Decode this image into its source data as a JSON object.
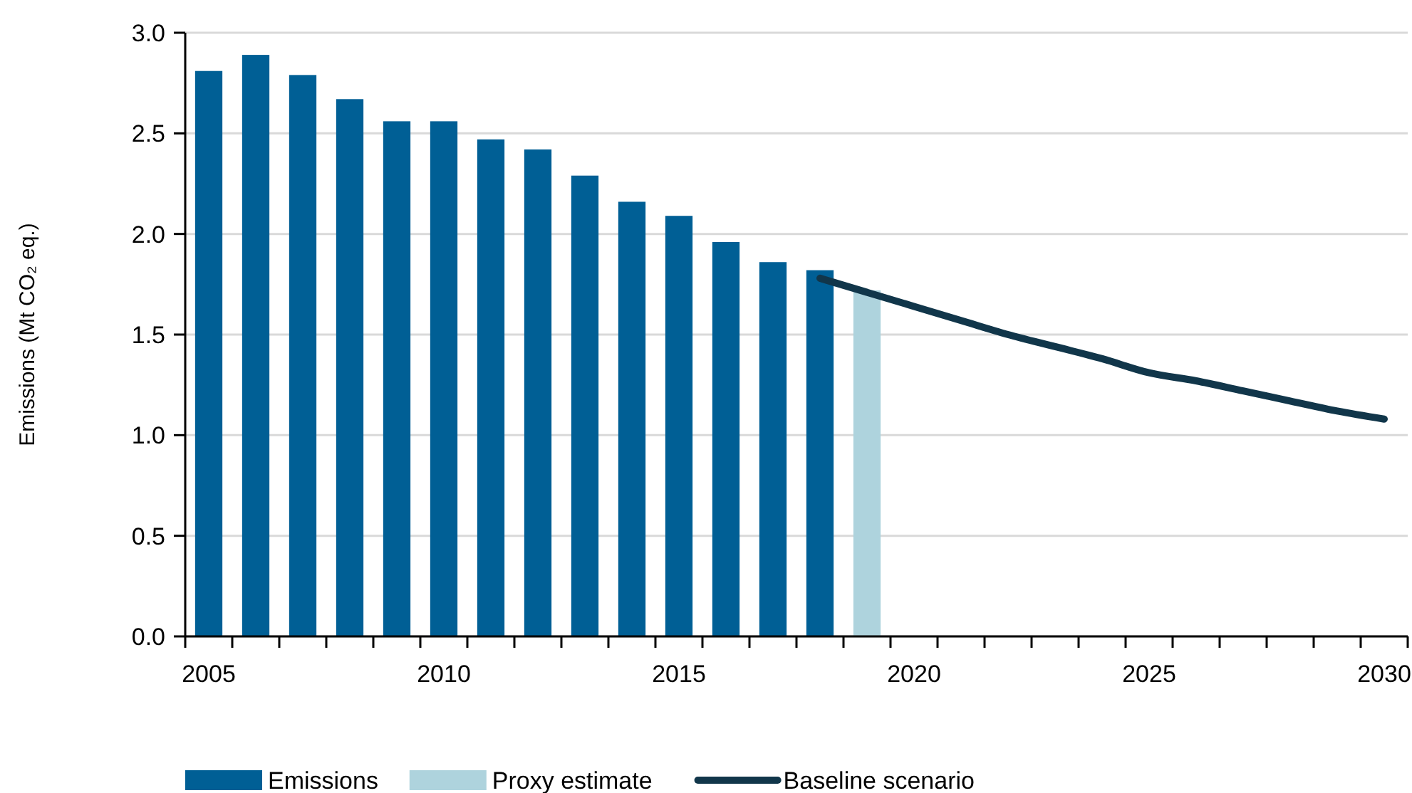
{
  "chart_data": {
    "type": "bar",
    "ylabel": "Emissions (Mt CO₂ eq.)",
    "categories": [
      "2005",
      null,
      null,
      null,
      null,
      "2010",
      null,
      null,
      null,
      null,
      "2015",
      null,
      null,
      null,
      null,
      "2020",
      null,
      null,
      null,
      null,
      "2025",
      null,
      null,
      null,
      null,
      "2030"
    ],
    "series": [
      {
        "name": "Emissions",
        "color": "#005f95",
        "values": [
          2.81,
          2.89,
          2.79,
          2.67,
          2.56,
          2.56,
          2.47,
          2.42,
          2.29,
          2.16,
          2.09,
          1.96,
          1.86,
          1.82,
          null,
          null,
          null,
          null,
          null,
          null,
          null,
          null,
          null,
          null,
          null,
          null
        ]
      },
      {
        "name": "Proxy estimate",
        "color": "#aed3dd",
        "values": [
          null,
          null,
          null,
          null,
          null,
          null,
          null,
          null,
          null,
          null,
          null,
          null,
          null,
          null,
          1.72,
          null,
          null,
          null,
          null,
          null,
          null,
          null,
          null,
          null,
          null,
          null
        ]
      },
      {
        "name": "Baseline scenario",
        "type": "line",
        "color": "#11364a",
        "values": [
          null,
          null,
          null,
          null,
          null,
          null,
          null,
          null,
          null,
          null,
          null,
          null,
          null,
          1.78,
          1.71,
          1.64,
          1.57,
          1.5,
          1.44,
          1.38,
          1.31,
          1.27,
          1.22,
          1.17,
          1.12,
          1.08
        ]
      }
    ],
    "ylim": [
      0,
      3
    ],
    "yticks": [
      {
        "value": 0,
        "label": "0.0"
      },
      {
        "value": 0.5,
        "label": "0.5"
      },
      {
        "value": 1,
        "label": "1.0"
      },
      {
        "value": 1.5,
        "label": "1.5"
      },
      {
        "value": 2,
        "label": "2.0"
      },
      {
        "value": 2.5,
        "label": "2.5"
      },
      {
        "value": 3,
        "label": "3.0"
      }
    ],
    "grid": "y",
    "legend": "bottom",
    "marker": "none",
    "line_style": "solid"
  }
}
